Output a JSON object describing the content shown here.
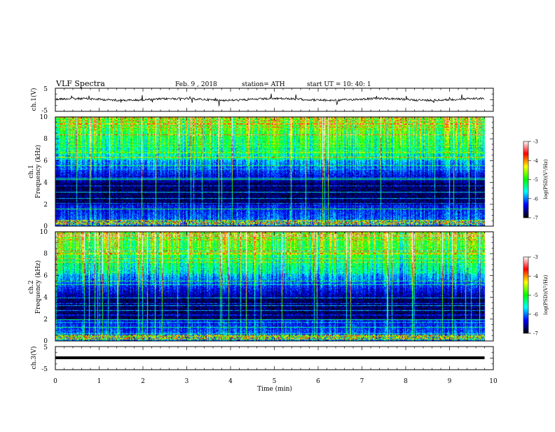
{
  "header": {
    "title": "VLF  Spectra",
    "date": "Feb. 9  , 2018",
    "station": "station= ATH",
    "start": "start  UT  =    10: 40: 1"
  },
  "chart_data": [
    {
      "type": "line",
      "name": "ch1-waveform",
      "ylabel": "ch.1(V)",
      "ylim": [
        -5,
        5
      ],
      "yticks": [
        "5",
        "-5"
      ],
      "baseline": 0
    },
    {
      "type": "heatmap",
      "name": "ch1-spectrogram",
      "ylabel": "ch.1\nFrequency  (kHz)",
      "ylim": [
        0,
        10
      ],
      "yticks": [
        "0",
        "2",
        "4",
        "6",
        "8",
        "10"
      ],
      "colorbar": {
        "label": "log(PSD)(V²/Hz)",
        "range": [
          -7,
          -3
        ],
        "ticks": [
          "-3",
          "-4",
          "-5",
          "-6",
          "-7"
        ]
      }
    },
    {
      "type": "heatmap",
      "name": "ch2-spectrogram",
      "ylabel": "ch.2\nFrequency  (kHz)",
      "ylim": [
        0,
        10
      ],
      "yticks": [
        "0",
        "2",
        "4",
        "6",
        "8",
        "10"
      ],
      "colorbar": {
        "label": "log(PSD)(V²/Hz)",
        "range": [
          -7,
          -3
        ],
        "ticks": [
          "-3",
          "-4",
          "-5",
          "-6",
          "-7"
        ]
      }
    },
    {
      "type": "line",
      "name": "ch3-waveform",
      "ylabel": "ch.3(V)",
      "ylim": [
        -5,
        5
      ],
      "yticks": [
        "5",
        "-5"
      ],
      "baseline": -1.8
    }
  ],
  "xaxis": {
    "label": "Time  (min)",
    "xlim": [
      0,
      10
    ],
    "ticks": [
      "0",
      "1",
      "2",
      "3",
      "4",
      "5",
      "6",
      "7",
      "8",
      "9",
      "10"
    ],
    "data_end": 9.8
  },
  "colors": {
    "colormap": [
      "#000000",
      "#0000ff",
      "#00ffff",
      "#00ff00",
      "#ffff00",
      "#ff0000",
      "#ffffff"
    ]
  }
}
